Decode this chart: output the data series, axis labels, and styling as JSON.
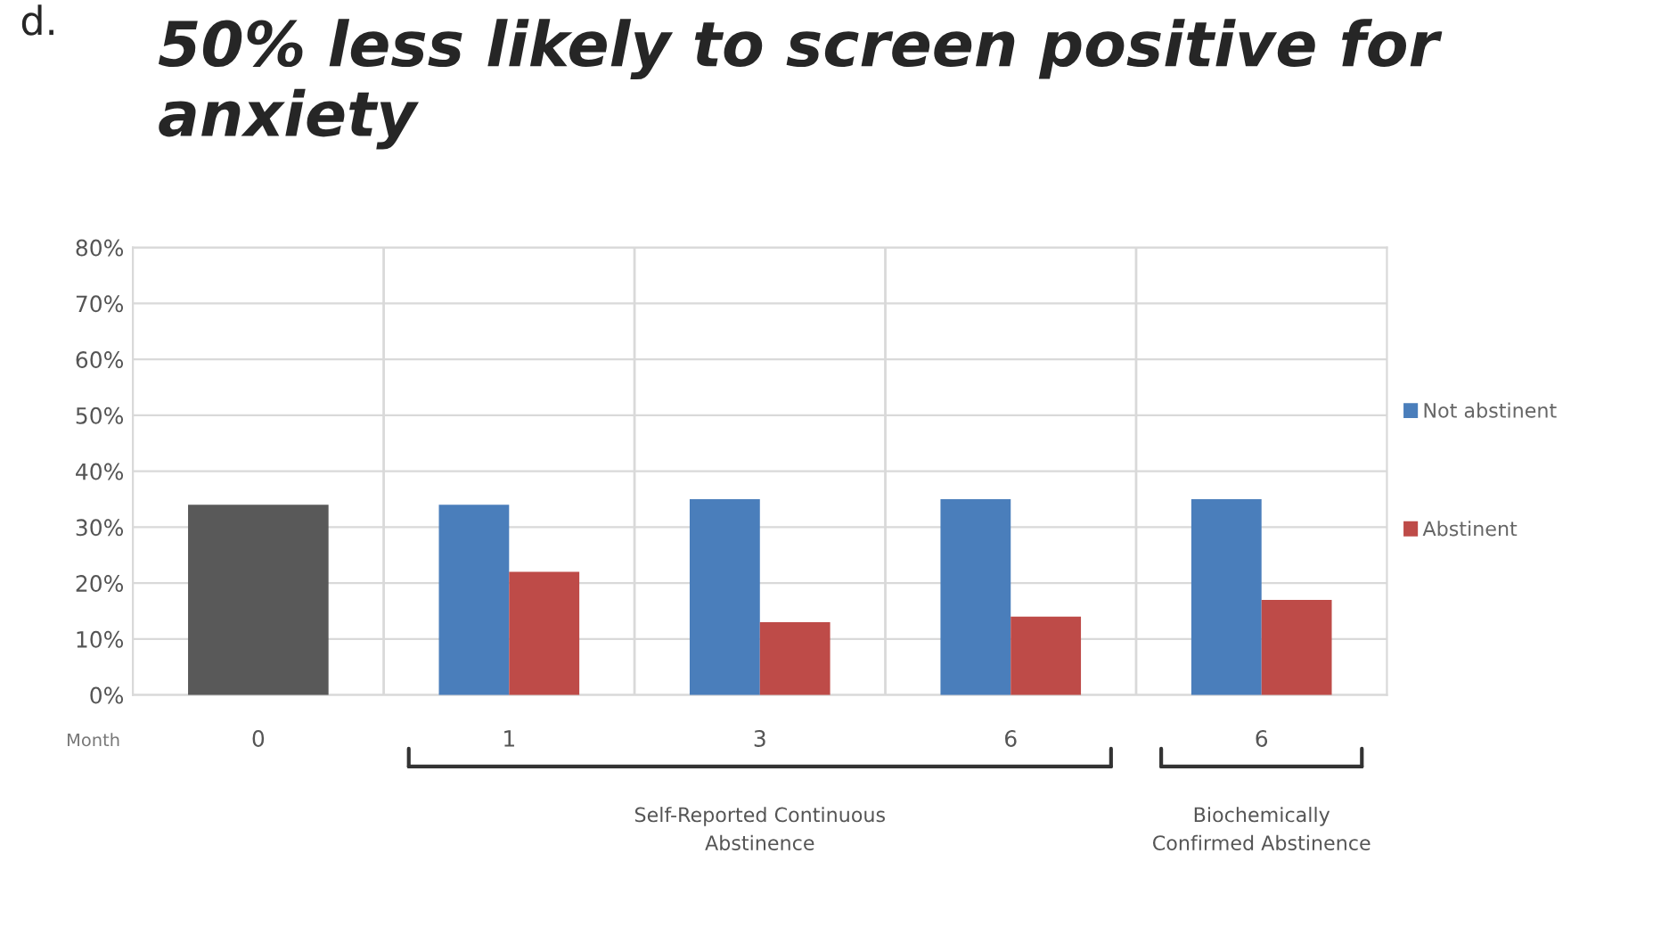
{
  "chart_data": {
    "type": "bar",
    "title": "50% less likely to screen positive for anxiety",
    "xlabel": "Month",
    "categories": [
      "0",
      "1",
      "3",
      "6",
      "6"
    ],
    "series": [
      {
        "color": "#595959",
        "values": [
          34,
          null,
          null,
          null,
          null
        ]
      },
      {
        "name": "Not abstinent",
        "color": "#4a7ebb",
        "values": [
          null,
          34,
          35,
          35,
          35
        ]
      },
      {
        "name": "Abstinent",
        "color": "#be4b48",
        "values": [
          null,
          22,
          13,
          14,
          17
        ]
      }
    ],
    "ylim": [
      0,
      80
    ],
    "yticks": [
      {
        "value": 0,
        "label": "0%"
      },
      {
        "value": 10,
        "label": "10%"
      },
      {
        "value": 20,
        "label": "20%"
      },
      {
        "value": 30,
        "label": "30%"
      },
      {
        "value": 40,
        "label": "40%"
      },
      {
        "value": 50,
        "label": "50%"
      },
      {
        "value": 60,
        "label": "60%"
      },
      {
        "value": 70,
        "label": "70%"
      },
      {
        "value": 80,
        "label": "80%"
      }
    ],
    "grid": true,
    "legend": "right",
    "annotations": [
      "d.",
      "Self-Reported Continuous\nAbstinence",
      "Biochemically\nConfirmed Abstinence"
    ]
  }
}
